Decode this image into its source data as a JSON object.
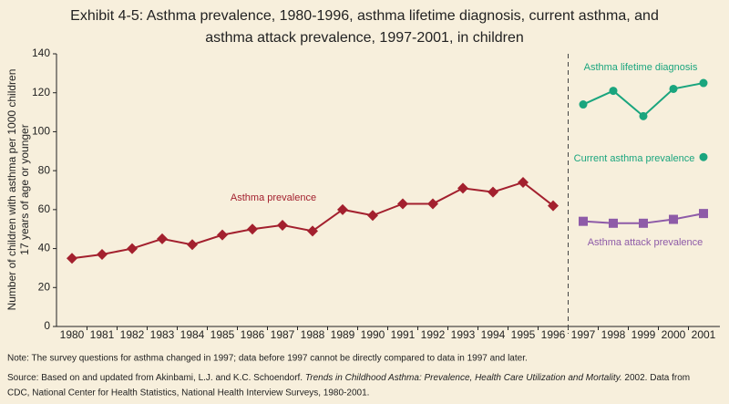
{
  "chart_data": {
    "type": "line",
    "title": [
      "Exhibit 4-5: Asthma prevalence, 1980-1996, asthma lifetime diagnosis, current asthma, and",
      "asthma attack prevalence, 1997-2001, in children"
    ],
    "ylabel": [
      "Number of children with asthma per 1000 children",
      "17 years of age or younger"
    ],
    "categories": [
      "1980",
      "1981",
      "1982",
      "1983",
      "1984",
      "1985",
      "1986",
      "1987",
      "1988",
      "1989",
      "1990",
      "1991",
      "1992",
      "1993",
      "1994",
      "1995",
      "1996",
      "1997",
      "1998",
      "1999",
      "2000",
      "2001"
    ],
    "series": [
      {
        "name": "Asthma prevalence",
        "color": "#a3202e",
        "marker": "diamond",
        "values": [
          35,
          37,
          40,
          45,
          42,
          47,
          50,
          52,
          49,
          60,
          57,
          63,
          63,
          71,
          69,
          74,
          62,
          null,
          null,
          null,
          null,
          null
        ]
      },
      {
        "name": "Asthma lifetime diagnosis",
        "color": "#1aa57e",
        "marker": "circle",
        "values": [
          null,
          null,
          null,
          null,
          null,
          null,
          null,
          null,
          null,
          null,
          null,
          null,
          null,
          null,
          null,
          null,
          null,
          114,
          121,
          108,
          122,
          125
        ]
      },
      {
        "name": "Current asthma prevalence",
        "color": "#1aa57e",
        "marker": "circle",
        "values": [
          null,
          null,
          null,
          null,
          null,
          null,
          null,
          null,
          null,
          null,
          null,
          null,
          null,
          null,
          null,
          null,
          null,
          null,
          null,
          null,
          null,
          87
        ]
      },
      {
        "name": "Asthma attack prevalence",
        "color": "#8e5ba8",
        "marker": "square",
        "values": [
          null,
          null,
          null,
          null,
          null,
          null,
          null,
          null,
          null,
          null,
          null,
          null,
          null,
          null,
          null,
          null,
          null,
          54,
          53,
          53,
          55,
          58
        ]
      }
    ],
    "ylim": [
      0,
      140
    ],
    "yticks": [
      0,
      20,
      40,
      60,
      80,
      100,
      120,
      140
    ],
    "note": "Note:  The survey questions for asthma changed in 1997; data before 1997 cannot be directly compared to data in 1997 and later.",
    "source": [
      "Source:  Based on and updated from Akinbami, L.J. and K.C. Schoendorf. ",
      "Trends in Childhood Asthma: Prevalence, Health Care Utilization and Mortality.",
      " 2002. Data from",
      "CDC, National Center for Health Statistics, National Health Interview Surveys, 1980-2001."
    ]
  }
}
